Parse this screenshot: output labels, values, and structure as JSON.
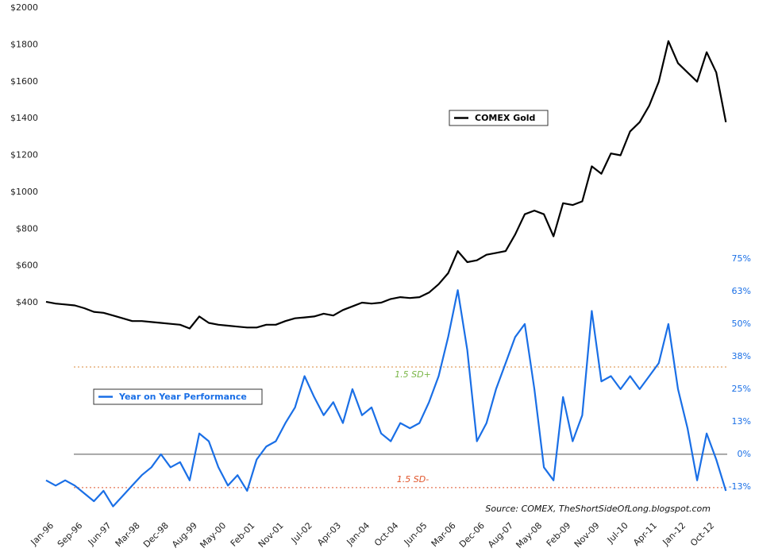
{
  "chart_data": {
    "type": "line",
    "source": "Source: COMEX, TheShortSideOfLong.blogspot.com",
    "categories": [
      "Jan-96",
      null,
      null,
      "Sep-96",
      null,
      null,
      "Jun-97",
      null,
      null,
      "Mar-98",
      null,
      null,
      "Dec-98",
      null,
      null,
      "Aug-99",
      null,
      null,
      "May-00",
      null,
      null,
      "Feb-01",
      null,
      null,
      "Nov-01",
      null,
      null,
      "Jul-02",
      null,
      null,
      "Apr-03",
      null,
      null,
      "Jan-04",
      null,
      null,
      "Oct-04",
      null,
      null,
      "Jun-05",
      null,
      null,
      "Mar-06",
      null,
      null,
      "Dec-06",
      null,
      null,
      "Aug-07",
      null,
      null,
      "May-08",
      null,
      null,
      "Feb-09",
      null,
      null,
      "Nov-09",
      null,
      null,
      "Jul-10",
      null,
      null,
      "Apr-11",
      null,
      null,
      "Jan-12",
      null,
      null,
      "Oct-12",
      null,
      null
    ],
    "series": [
      {
        "name": "COMEX Gold",
        "color": "#000000",
        "values": [
          405,
          395,
          390,
          385,
          370,
          350,
          345,
          330,
          315,
          300,
          300,
          295,
          290,
          285,
          280,
          260,
          325,
          290,
          280,
          275,
          270,
          265,
          265,
          280,
          280,
          300,
          315,
          320,
          325,
          340,
          330,
          360,
          380,
          400,
          395,
          400,
          420,
          430,
          425,
          430,
          455,
          500,
          560,
          680,
          620,
          630,
          660,
          670,
          680,
          770,
          880,
          900,
          880,
          760,
          940,
          930,
          950,
          1140,
          1100,
          1210,
          1200,
          1330,
          1380,
          1470,
          1600,
          1820,
          1700,
          1650,
          1600,
          1760,
          1650,
          1380
        ]
      },
      {
        "name": "Year on Year Performance",
        "color": "#1a6fe6",
        "axis": "y2",
        "values": [
          -10,
          -12,
          -10,
          -12,
          -15,
          -18,
          -14,
          -20,
          -16,
          -12,
          -8,
          -5,
          0,
          -5,
          -3,
          -10,
          8,
          5,
          -5,
          -12,
          -8,
          -14,
          -2,
          3,
          5,
          12,
          18,
          30,
          22,
          15,
          20,
          12,
          25,
          15,
          18,
          8,
          5,
          12,
          10,
          12,
          20,
          30,
          45,
          63,
          40,
          5,
          12,
          25,
          35,
          45,
          50,
          25,
          -5,
          -10,
          22,
          5,
          15,
          55,
          28,
          30,
          25,
          30,
          25,
          30,
          35,
          50,
          25,
          10,
          -10,
          8,
          -2,
          -14
        ]
      }
    ],
    "ylim": [
      -760,
      2000
    ],
    "yticks": [
      {
        "value": 400,
        "label": "$400"
      },
      {
        "value": 600,
        "label": "$600"
      },
      {
        "value": 800,
        "label": "$800"
      },
      {
        "value": 1000,
        "label": "$1000"
      },
      {
        "value": 1200,
        "label": "$1200"
      },
      {
        "value": 1400,
        "label": "$1400"
      },
      {
        "value": 1600,
        "label": "$1600"
      },
      {
        "value": 1800,
        "label": "$1800"
      },
      {
        "value": 2000,
        "label": "$2000"
      }
    ],
    "y2lim": [
      -23.8,
      171.3
    ],
    "y2ticks": [
      {
        "value": -12.5,
        "label": "-13%"
      },
      {
        "value": 0,
        "label": "0%"
      },
      {
        "value": 12.5,
        "label": "13%"
      },
      {
        "value": 25,
        "label": "25%"
      },
      {
        "value": 37.5,
        "label": "38%"
      },
      {
        "value": 50,
        "label": "50%"
      },
      {
        "value": 62.5,
        "label": "63%"
      },
      {
        "value": 75,
        "label": "75%"
      }
    ],
    "reference_lines": [
      {
        "value": 0,
        "color": "#555555"
      },
      {
        "value": 33.5,
        "label": "1.5 SD+",
        "color": "#d9893a",
        "label_color": "#7ab648"
      },
      {
        "value": -12.8,
        "label": "1.5 SD-",
        "color": "#e0552b",
        "label_color": "#e0552b"
      }
    ]
  }
}
